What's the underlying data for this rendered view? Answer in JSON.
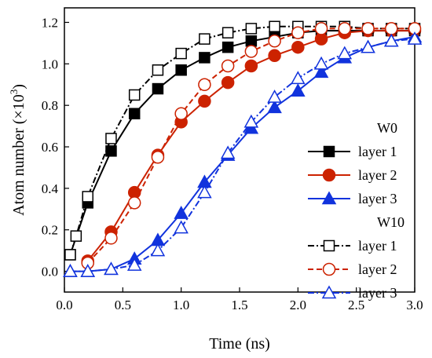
{
  "chart_data": {
    "type": "line",
    "xlabel": "Time (ns)",
    "ylabel_main": "Atom number (×10",
    "ylabel_sup": "3",
    "ylabel_close": ")",
    "xlim": [
      0,
      3.0
    ],
    "ylim": [
      -0.1,
      1.27
    ],
    "xticks": [
      "0.0",
      "0.5",
      "1.0",
      "1.5",
      "2.0",
      "2.5",
      "3.0"
    ],
    "yticks": [
      "0.0",
      "0.2",
      "0.4",
      "0.6",
      "0.8",
      "1.0",
      "1.2"
    ],
    "grid": false,
    "legend_placement": "right",
    "legend_groups": [
      {
        "title": "W0",
        "entries": [
          "layer 1",
          "layer 2",
          "layer 3"
        ]
      },
      {
        "title": "W10",
        "entries": [
          "layer 1",
          "layer 2",
          "layer 3"
        ]
      }
    ],
    "series": [
      {
        "group": "W0",
        "name": "layer 1",
        "color": "#000000",
        "marker": "square",
        "filled": true,
        "dash": "solid",
        "x": [
          0.05,
          0.2,
          0.4,
          0.6,
          0.8,
          1.0,
          1.2,
          1.4,
          1.6,
          1.8,
          2.0,
          2.2,
          2.4,
          2.6,
          2.8,
          3.0
        ],
        "y": [
          0.08,
          0.33,
          0.58,
          0.76,
          0.88,
          0.97,
          1.03,
          1.08,
          1.11,
          1.13,
          1.15,
          1.16,
          1.16,
          1.16,
          1.16,
          1.16
        ]
      },
      {
        "group": "W0",
        "name": "layer 2",
        "color": "#cc2200",
        "marker": "circle",
        "filled": true,
        "dash": "solid",
        "x": [
          0.2,
          0.4,
          0.6,
          0.8,
          1.0,
          1.2,
          1.4,
          1.6,
          1.8,
          2.0,
          2.2,
          2.4,
          2.6,
          2.8,
          3.0
        ],
        "y": [
          0.05,
          0.19,
          0.38,
          0.56,
          0.72,
          0.82,
          0.91,
          0.99,
          1.04,
          1.08,
          1.12,
          1.15,
          1.16,
          1.16,
          1.16
        ]
      },
      {
        "group": "W0",
        "name": "layer 3",
        "color": "#1133dd",
        "marker": "triangle",
        "filled": true,
        "dash": "solid",
        "x": [
          0.05,
          0.2,
          0.4,
          0.6,
          0.8,
          1.0,
          1.2,
          1.4,
          1.6,
          1.8,
          2.0,
          2.2,
          2.4,
          2.6,
          2.8,
          3.0
        ],
        "y": [
          0.0,
          0.0,
          0.01,
          0.06,
          0.15,
          0.28,
          0.43,
          0.56,
          0.69,
          0.79,
          0.87,
          0.96,
          1.03,
          1.08,
          1.11,
          1.13
        ]
      },
      {
        "group": "W10",
        "name": "layer 1",
        "color": "#000000",
        "marker": "square",
        "filled": false,
        "dash": "dashdot",
        "x": [
          0.05,
          0.1,
          0.2,
          0.4,
          0.6,
          0.8,
          1.0,
          1.2,
          1.4,
          1.6,
          1.8,
          2.0,
          2.2,
          2.4,
          2.6,
          2.8,
          3.0
        ],
        "y": [
          0.08,
          0.17,
          0.36,
          0.64,
          0.85,
          0.97,
          1.05,
          1.12,
          1.15,
          1.17,
          1.18,
          1.18,
          1.18,
          1.18,
          1.17,
          1.17,
          1.17
        ]
      },
      {
        "group": "W10",
        "name": "layer 2",
        "color": "#cc2200",
        "marker": "circle",
        "filled": false,
        "dash": "dashed",
        "x": [
          0.2,
          0.4,
          0.6,
          0.8,
          1.0,
          1.2,
          1.4,
          1.6,
          1.8,
          2.0,
          2.2,
          2.4,
          2.6,
          2.8,
          3.0
        ],
        "y": [
          0.04,
          0.16,
          0.33,
          0.55,
          0.76,
          0.9,
          0.99,
          1.06,
          1.11,
          1.15,
          1.17,
          1.17,
          1.17,
          1.17,
          1.17
        ]
      },
      {
        "group": "W10",
        "name": "layer 3",
        "color": "#1133dd",
        "marker": "triangle",
        "filled": false,
        "dash": "dashdot",
        "x": [
          0.05,
          0.2,
          0.4,
          0.6,
          0.8,
          1.0,
          1.2,
          1.4,
          1.6,
          1.8,
          2.0,
          2.2,
          2.4,
          2.6,
          2.8,
          3.0
        ],
        "y": [
          0.0,
          0.0,
          0.01,
          0.03,
          0.1,
          0.21,
          0.38,
          0.57,
          0.72,
          0.84,
          0.93,
          1.0,
          1.05,
          1.08,
          1.11,
          1.12
        ]
      }
    ]
  }
}
